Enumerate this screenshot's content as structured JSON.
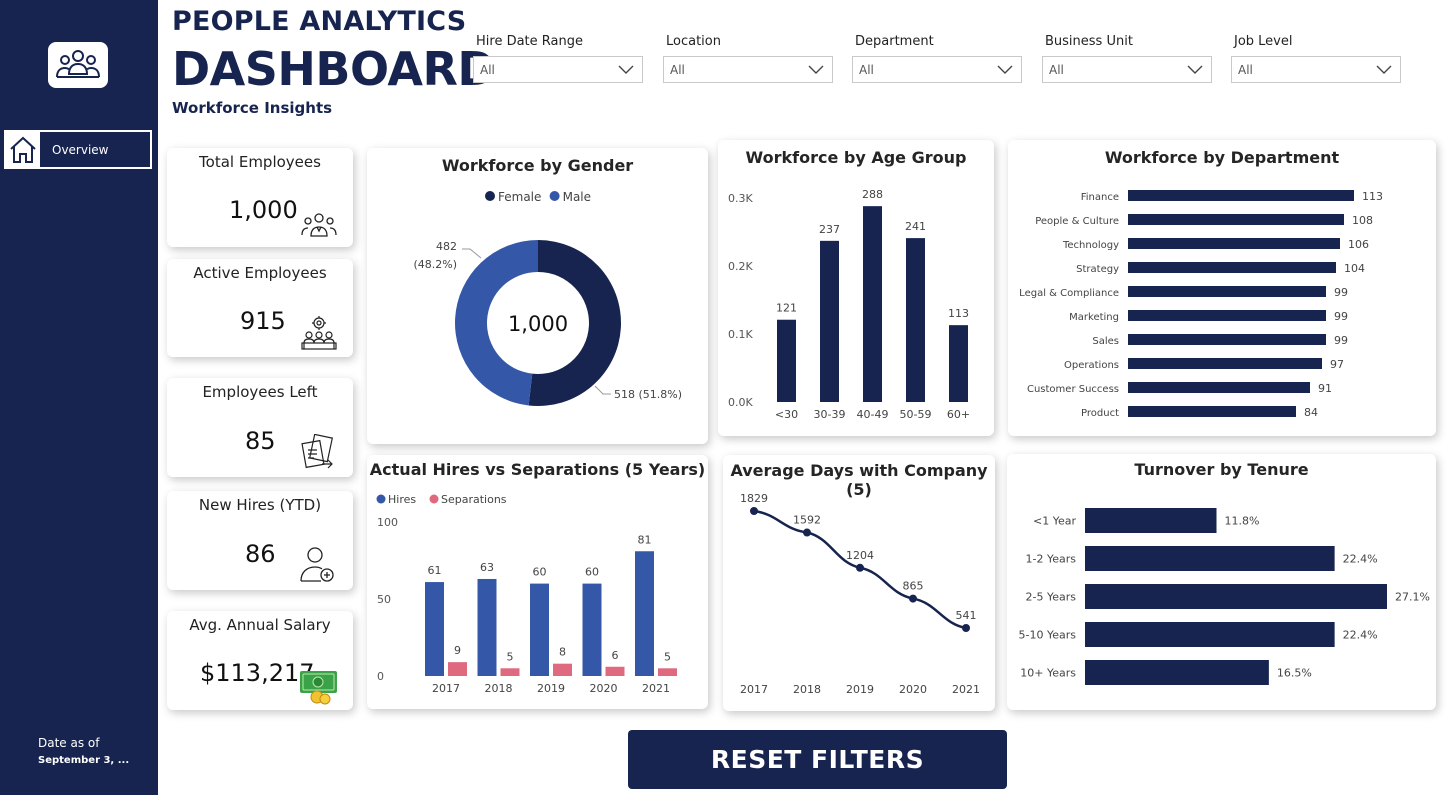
{
  "header": {
    "title_line1": "PEOPLE ANALYTICS",
    "title_line2": "DASHBOARD",
    "subtitle": "Workforce Insights"
  },
  "sidebar": {
    "nav_item": "Overview",
    "date_label": "Date as of",
    "date_value": "September 3, ..."
  },
  "filters": [
    {
      "label": "Hire Date Range",
      "value": "All"
    },
    {
      "label": "Location",
      "value": "All"
    },
    {
      "label": "Department",
      "value": "All"
    },
    {
      "label": "Business Unit",
      "value": "All"
    },
    {
      "label": "Job Level",
      "value": "All"
    }
  ],
  "kpis": [
    {
      "title": "Total Employees",
      "value": "1,000",
      "icon": "people-group-icon"
    },
    {
      "title": "Active Employees",
      "value": "915",
      "icon": "team-meeting-icon"
    },
    {
      "title": "Employees Left",
      "value": "85",
      "icon": "documents-exit-icon"
    },
    {
      "title": "New Hires (YTD)",
      "value": "86",
      "icon": "add-user-icon"
    },
    {
      "title": "Avg. Annual Salary",
      "value": "$113,217",
      "icon": "money-icon"
    }
  ],
  "reset_button": "RESET FILTERS",
  "colors": {
    "navy": "#16244f",
    "blue": "#3457a8",
    "pink": "#df6a80"
  },
  "chart_data": [
    {
      "id": "gender",
      "type": "pie",
      "title": "Workforce by Gender",
      "center_label": "1,000",
      "legend_position": "top",
      "series": [
        {
          "name": "Female",
          "value": 518,
          "label": "518 (51.8%)",
          "color": "#16244f"
        },
        {
          "name": "Male",
          "value": 482,
          "label_line1": "482",
          "label_line2": "(48.2%)",
          "color": "#3457a8"
        }
      ]
    },
    {
      "id": "age",
      "type": "bar",
      "title": "Workforce by Age Group",
      "categories": [
        "<30",
        "30-39",
        "40-49",
        "50-59",
        "60+"
      ],
      "values": [
        121,
        237,
        288,
        241,
        113
      ],
      "ylim": [
        0,
        300
      ],
      "yticks": [
        "0.0K",
        "0.1K",
        "0.2K",
        "0.3K"
      ],
      "grid": false
    },
    {
      "id": "department",
      "type": "bar",
      "orientation": "horizontal",
      "title": "Workforce by Department",
      "categories": [
        "Finance",
        "People & Culture",
        "Technology",
        "Strategy",
        "Legal & Compliance",
        "Marketing",
        "Sales",
        "Operations",
        "Customer Success",
        "Product"
      ],
      "values": [
        113,
        108,
        106,
        104,
        99,
        99,
        99,
        97,
        91,
        84
      ]
    },
    {
      "id": "hires",
      "type": "bar",
      "title": "Actual Hires vs Separations (5 Years)",
      "legend_position": "top-left",
      "categories": [
        "2017",
        "2018",
        "2019",
        "2020",
        "2021"
      ],
      "ylim": [
        0,
        100
      ],
      "yticks": [
        "0",
        "50",
        "100"
      ],
      "series": [
        {
          "name": "Hires",
          "values": [
            61,
            63,
            60,
            60,
            81
          ],
          "color": "#3457a8"
        },
        {
          "name": "Separations",
          "values": [
            9,
            5,
            8,
            6,
            5
          ],
          "color": "#df6a80"
        }
      ]
    },
    {
      "id": "tenure_days",
      "type": "line",
      "title": "Average Days with Company (5)",
      "categories": [
        "2017",
        "2018",
        "2019",
        "2020",
        "2021"
      ],
      "values": [
        1829,
        1592,
        1204,
        865,
        541
      ]
    },
    {
      "id": "turnover",
      "type": "bar",
      "orientation": "horizontal",
      "title": "Turnover by Tenure",
      "categories": [
        "<1 Year",
        "1-2 Years",
        "2-5 Years",
        "5-10 Years",
        "10+ Years"
      ],
      "values": [
        11.8,
        22.4,
        27.1,
        22.4,
        16.5
      ],
      "labels": [
        "11.8%",
        "22.4%",
        "27.1%",
        "22.4%",
        "16.5%"
      ]
    }
  ]
}
